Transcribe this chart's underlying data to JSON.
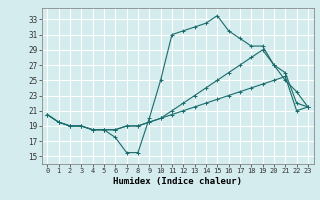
{
  "xlabel": "Humidex (Indice chaleur)",
  "bg_color": "#d4ecee",
  "grid_color": "#ffffff",
  "line_color": "#1a6b6b",
  "xlim": [
    -0.5,
    23.5
  ],
  "ylim": [
    14,
    34.5
  ],
  "xticks": [
    0,
    1,
    2,
    3,
    4,
    5,
    6,
    7,
    8,
    9,
    10,
    11,
    12,
    13,
    14,
    15,
    16,
    17,
    18,
    19,
    20,
    21,
    22,
    23
  ],
  "yticks": [
    15,
    17,
    19,
    21,
    23,
    25,
    27,
    29,
    31,
    33
  ],
  "line1_x": [
    0,
    1,
    2,
    3,
    4,
    5,
    6,
    7,
    8,
    9,
    10,
    11,
    12,
    13,
    14,
    15,
    16,
    17,
    18,
    19,
    20,
    21,
    22,
    23
  ],
  "line1_y": [
    20.5,
    19.5,
    19,
    19,
    18.5,
    18.5,
    17.5,
    15.5,
    15.5,
    20,
    25,
    31,
    31.5,
    32,
    32.5,
    33.5,
    31.5,
    30.5,
    29.5,
    29.5,
    27,
    25,
    23.5,
    21.5
  ],
  "line2_x": [
    0,
    1,
    2,
    3,
    4,
    5,
    6,
    7,
    8,
    9,
    10,
    11,
    12,
    13,
    14,
    15,
    16,
    17,
    18,
    19,
    20,
    21,
    22,
    23
  ],
  "line2_y": [
    20.5,
    19.5,
    19,
    19,
    18.5,
    18.5,
    18.5,
    19,
    19,
    19.5,
    20,
    20.5,
    21,
    21.5,
    22,
    22.5,
    23,
    23.5,
    24,
    24.5,
    25,
    25.5,
    21,
    21.5
  ],
  "line3_x": [
    0,
    1,
    2,
    3,
    4,
    5,
    6,
    7,
    8,
    9,
    10,
    11,
    12,
    13,
    14,
    15,
    16,
    17,
    18,
    19,
    20,
    21,
    22,
    23
  ],
  "line3_y": [
    20.5,
    19.5,
    19,
    19,
    18.5,
    18.5,
    18.5,
    19,
    19,
    19.5,
    20,
    21,
    22,
    23,
    24,
    25,
    26,
    27,
    28,
    29,
    27,
    26,
    22,
    21.5
  ]
}
